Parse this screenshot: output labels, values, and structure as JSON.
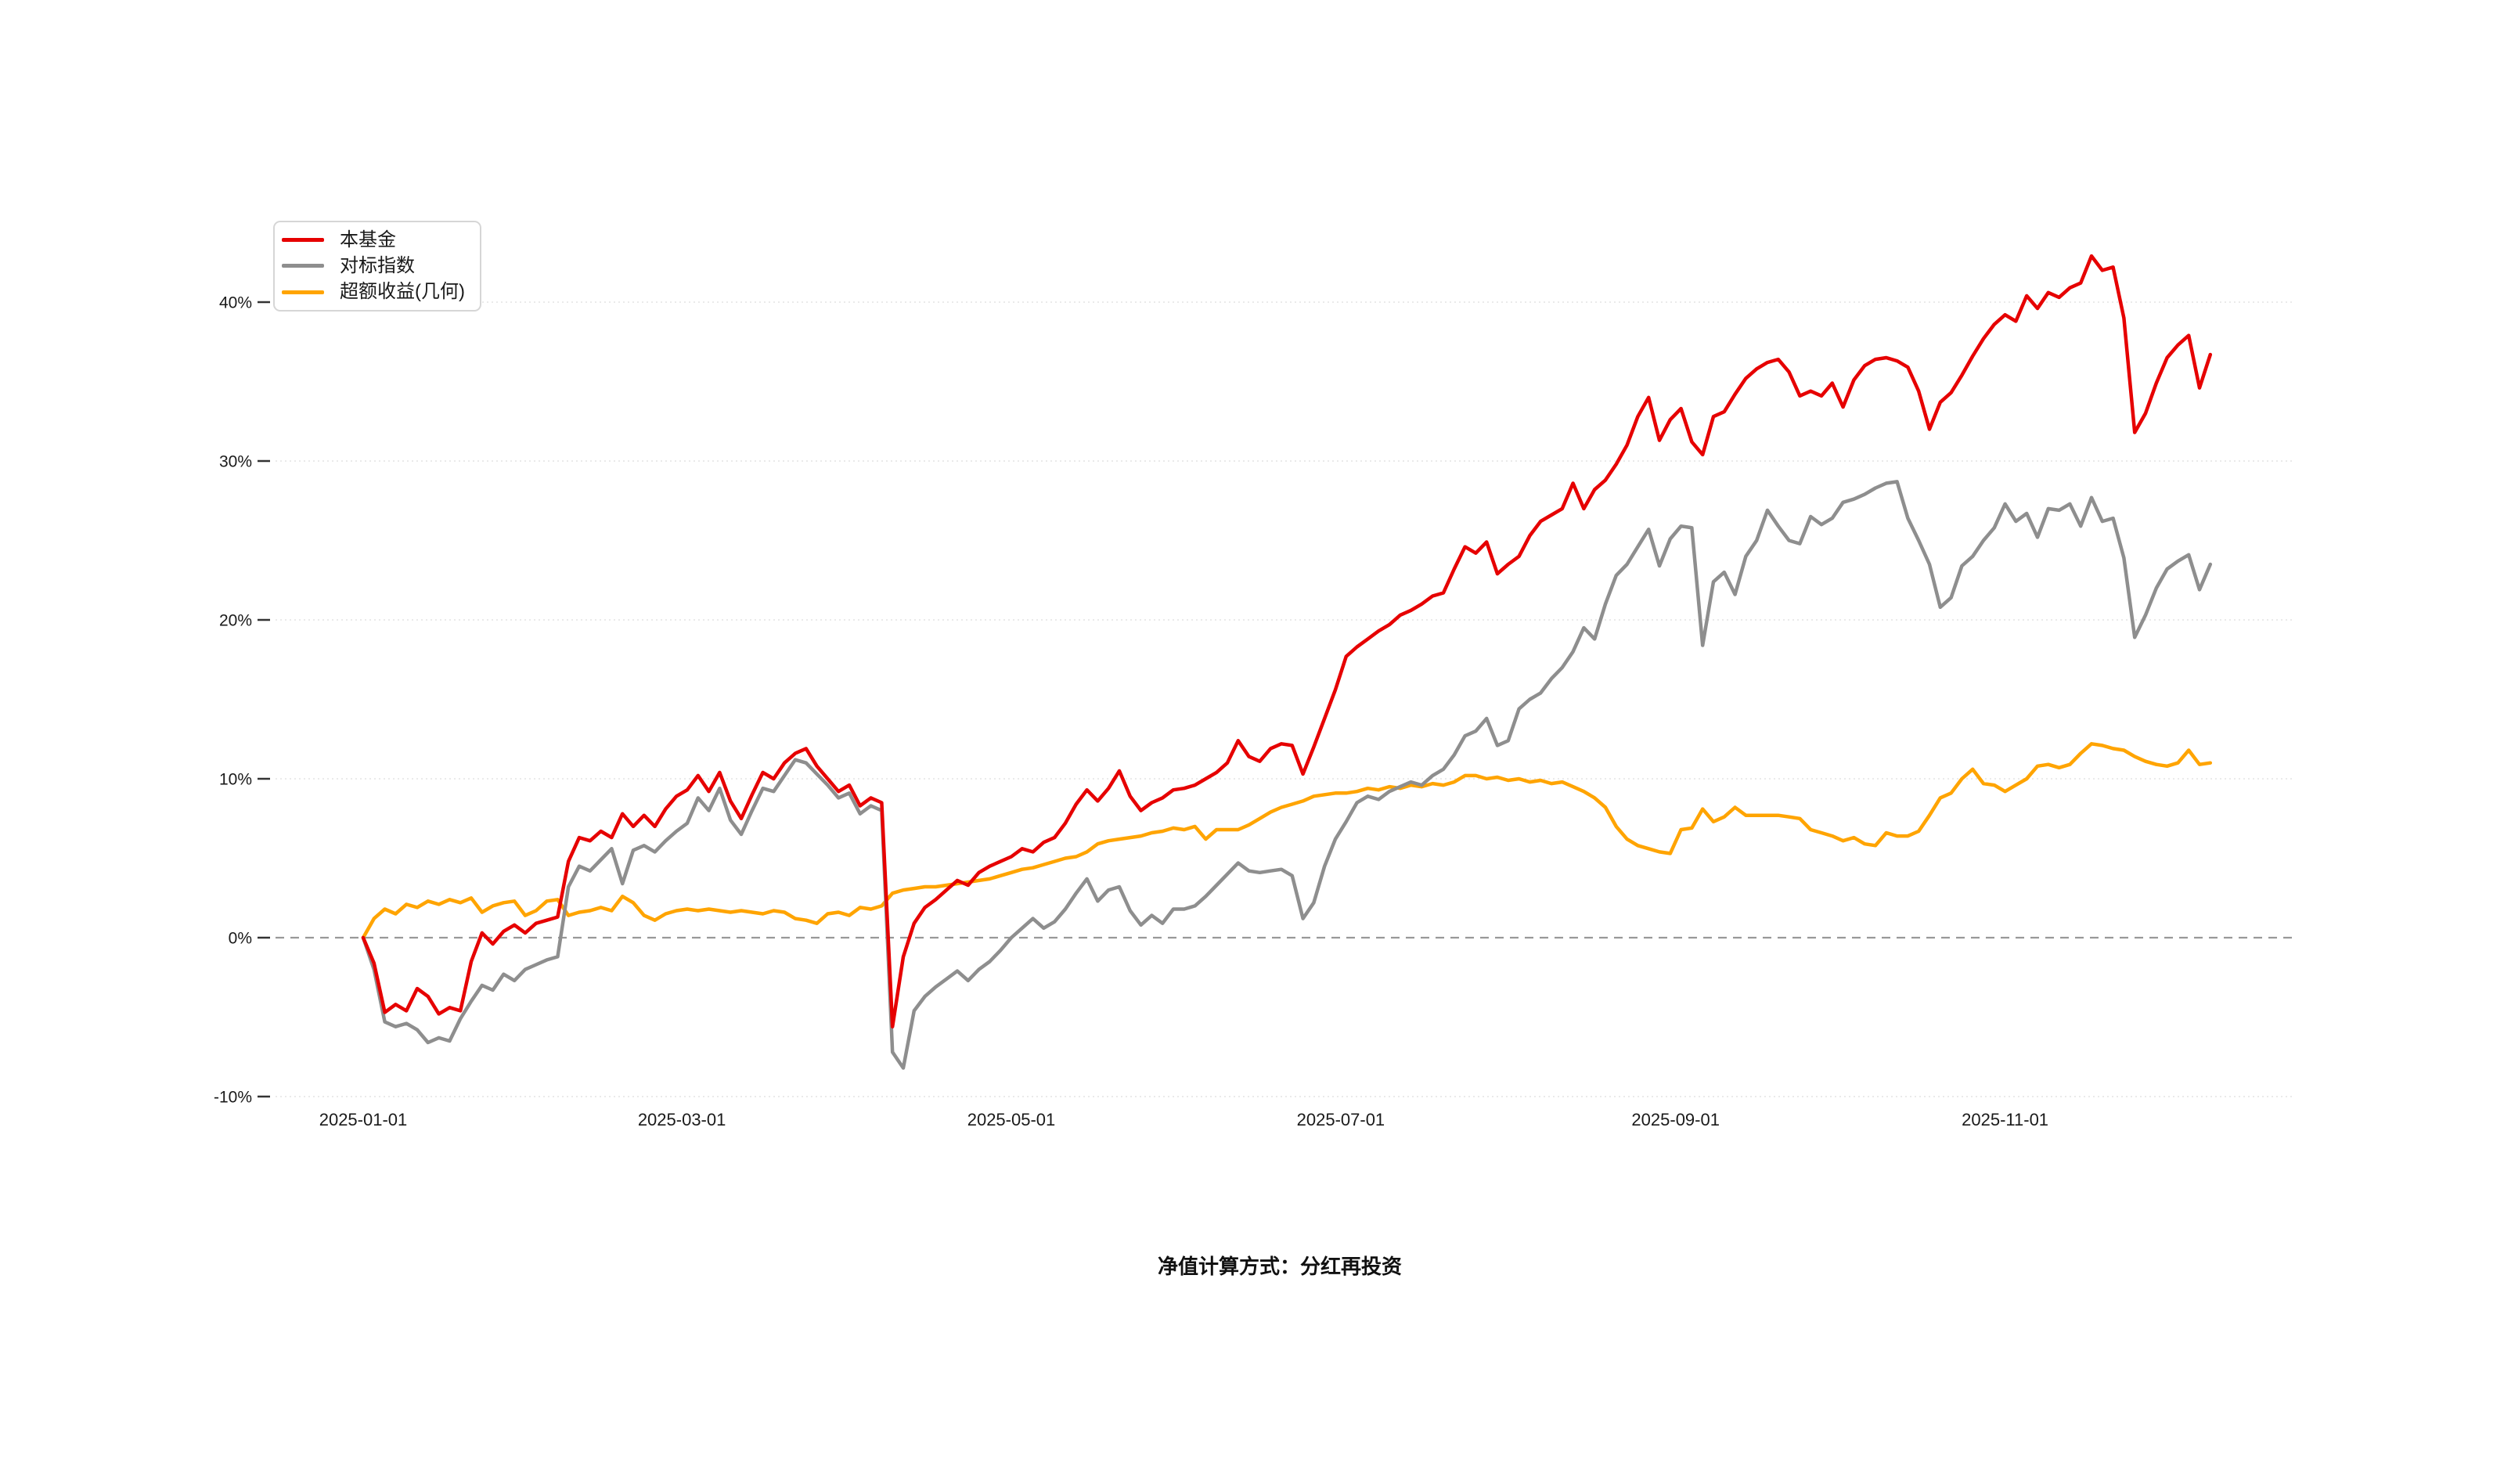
{
  "chart_data": {
    "type": "line",
    "title": "",
    "footnote": "净值计算方式：分红再投资",
    "start_date": "2025-01-01",
    "day_step": 2,
    "x_axis": {
      "ticks": [
        {
          "label": "2025-01-01",
          "day": 0
        },
        {
          "label": "2025-03-01",
          "day": 59
        },
        {
          "label": "2025-05-01",
          "day": 120
        },
        {
          "label": "2025-07-01",
          "day": 181
        },
        {
          "label": "2025-09-01",
          "day": 243
        },
        {
          "label": "2025-11-01",
          "day": 304
        }
      ]
    },
    "y_axis": {
      "unit": "%",
      "ticks": [
        {
          "label": "-10%",
          "value": -10
        },
        {
          "label": "0%",
          "value": 0
        },
        {
          "label": "10%",
          "value": 10
        },
        {
          "label": "20%",
          "value": 20
        },
        {
          "label": "30%",
          "value": 30
        },
        {
          "label": "40%",
          "value": 40
        }
      ],
      "range": [
        -13,
        45
      ],
      "zero_line_style": "dashed",
      "grid_style": "dotted"
    },
    "legend": {
      "position": "top-left"
    },
    "colors": {
      "grid": "#e3e3e3",
      "zero_line": "#999999",
      "text": "#1a1a1a"
    },
    "series": [
      {
        "key": "fund",
        "name": "本基金",
        "color": "#e60000",
        "values": [
          0,
          -1.6,
          -4.7,
          -4.2,
          -4.6,
          -3.2,
          -3.7,
          -4.8,
          -4.4,
          -4.6,
          -1.5,
          0.3,
          -0.4,
          0.4,
          0.8,
          0.3,
          0.9,
          1.1,
          1.3,
          4.8,
          6.3,
          6.1,
          6.7,
          6.3,
          7.8,
          7.0,
          7.7,
          7.0,
          8.1,
          8.9,
          9.3,
          10.2,
          9.2,
          10.4,
          8.6,
          7.5,
          9.0,
          10.4,
          10.0,
          11.0,
          11.6,
          11.9,
          10.8,
          10.0,
          9.2,
          9.6,
          8.3,
          8.8,
          8.5,
          -5.6,
          -1.2,
          0.9,
          1.9,
          2.4,
          3.0,
          3.6,
          3.3,
          4.1,
          4.5,
          4.8,
          5.1,
          5.6,
          5.4,
          6.0,
          6.3,
          7.2,
          8.4,
          9.3,
          8.6,
          9.4,
          10.5,
          8.9,
          8.0,
          8.5,
          8.8,
          9.3,
          9.4,
          9.6,
          10.0,
          10.4,
          11.0,
          12.4,
          11.4,
          11.1,
          11.9,
          12.2,
          12.1,
          10.3,
          12.0,
          13.8,
          15.6,
          17.7,
          18.3,
          18.8,
          19.3,
          19.7,
          20.3,
          20.6,
          21.0,
          21.5,
          21.7,
          23.2,
          24.6,
          24.2,
          24.9,
          22.9,
          23.5,
          24.0,
          25.3,
          26.2,
          26.6,
          27.0,
          28.6,
          27.0,
          28.2,
          28.8,
          29.8,
          31.0,
          32.8,
          34.0,
          31.3,
          32.6,
          33.3,
          31.2,
          30.4,
          32.8,
          33.1,
          34.2,
          35.2,
          35.8,
          36.2,
          36.4,
          35.6,
          34.1,
          34.4,
          34.1,
          34.9,
          33.4,
          35.1,
          36.0,
          36.4,
          36.5,
          36.3,
          35.9,
          34.4,
          32.0,
          33.7,
          34.3,
          35.4,
          36.6,
          37.7,
          38.6,
          39.2,
          38.8,
          40.4,
          39.6,
          40.6,
          40.3,
          40.9,
          41.2,
          42.9,
          42.0,
          42.2,
          39.0,
          31.8,
          33.0,
          34.9,
          36.5,
          37.3,
          37.9,
          34.6,
          36.7
        ]
      },
      {
        "key": "benchmark",
        "name": "对标指数",
        "color": "#8e8e8e",
        "values": [
          0,
          -2.0,
          -5.3,
          -5.6,
          -5.4,
          -5.8,
          -6.6,
          -6.3,
          -6.5,
          -5.1,
          -4.0,
          -3.0,
          -3.3,
          -2.3,
          -2.7,
          -2.0,
          -1.7,
          -1.4,
          -1.2,
          3.2,
          4.5,
          4.2,
          4.9,
          5.6,
          3.4,
          5.5,
          5.8,
          5.4,
          6.1,
          6.7,
          7.2,
          8.8,
          8.0,
          9.4,
          7.4,
          6.5,
          8.0,
          9.4,
          9.2,
          10.2,
          11.2,
          11.0,
          10.3,
          9.6,
          8.8,
          9.1,
          7.8,
          8.3,
          8.0,
          -7.2,
          -8.2,
          -4.6,
          -3.7,
          -3.1,
          -2.6,
          -2.1,
          -2.7,
          -2.0,
          -1.5,
          -0.8,
          0.0,
          0.6,
          1.2,
          0.6,
          1.0,
          1.8,
          2.8,
          3.7,
          2.3,
          3.0,
          3.2,
          1.7,
          0.8,
          1.4,
          0.9,
          1.8,
          1.8,
          2.0,
          2.6,
          3.3,
          4.0,
          4.7,
          4.2,
          4.1,
          4.2,
          4.3,
          3.9,
          1.2,
          2.2,
          4.5,
          6.2,
          7.3,
          8.5,
          8.9,
          8.7,
          9.2,
          9.5,
          9.8,
          9.6,
          10.2,
          10.6,
          11.5,
          12.7,
          13.0,
          13.8,
          12.1,
          12.4,
          14.4,
          15.0,
          15.4,
          16.3,
          17.0,
          18.0,
          19.5,
          18.8,
          21.0,
          22.8,
          23.5,
          24.6,
          25.7,
          23.4,
          25.1,
          25.9,
          25.8,
          18.4,
          22.4,
          23.0,
          21.6,
          24.0,
          25.0,
          26.9,
          25.9,
          25.0,
          24.8,
          26.5,
          26.0,
          26.4,
          27.4,
          27.6,
          27.9,
          28.3,
          28.6,
          28.7,
          26.4,
          25.0,
          23.5,
          20.8,
          21.4,
          23.4,
          24.0,
          25.0,
          25.8,
          27.3,
          26.2,
          26.7,
          25.2,
          27.0,
          26.9,
          27.3,
          25.9,
          27.7,
          26.2,
          26.4,
          23.9,
          18.9,
          20.3,
          22.0,
          23.2,
          23.7,
          24.1,
          21.9,
          23.5
        ]
      },
      {
        "key": "excess-return-geometric",
        "name": "超额收益(几何)",
        "color": "#ffa400",
        "values": [
          0,
          1.2,
          1.8,
          1.5,
          2.1,
          1.9,
          2.3,
          2.1,
          2.4,
          2.2,
          2.5,
          1.6,
          2.0,
          2.2,
          2.3,
          1.4,
          1.7,
          2.3,
          2.4,
          1.4,
          1.6,
          1.7,
          1.9,
          1.7,
          2.6,
          2.2,
          1.4,
          1.1,
          1.5,
          1.7,
          1.8,
          1.7,
          1.8,
          1.7,
          1.6,
          1.7,
          1.6,
          1.5,
          1.7,
          1.6,
          1.2,
          1.1,
          0.9,
          1.5,
          1.6,
          1.4,
          1.9,
          1.8,
          2.0,
          2.8,
          3.0,
          3.1,
          3.2,
          3.2,
          3.3,
          3.4,
          3.5,
          3.6,
          3.7,
          3.9,
          4.1,
          4.3,
          4.4,
          4.6,
          4.8,
          5.0,
          5.1,
          5.4,
          5.9,
          6.1,
          6.2,
          6.3,
          6.4,
          6.6,
          6.7,
          6.9,
          6.8,
          7.0,
          6.2,
          6.8,
          6.8,
          6.8,
          7.1,
          7.5,
          7.9,
          8.2,
          8.4,
          8.6,
          8.9,
          9.0,
          9.1,
          9.1,
          9.2,
          9.4,
          9.3,
          9.5,
          9.4,
          9.6,
          9.5,
          9.7,
          9.6,
          9.8,
          10.2,
          10.2,
          10.0,
          10.1,
          9.9,
          10.0,
          9.8,
          9.9,
          9.7,
          9.8,
          9.5,
          9.2,
          8.8,
          8.2,
          7.0,
          6.2,
          5.8,
          5.6,
          5.4,
          5.3,
          6.8,
          6.9,
          8.1,
          7.3,
          7.6,
          8.2,
          7.7,
          7.7,
          7.7,
          7.7,
          7.6,
          7.5,
          6.8,
          6.6,
          6.4,
          6.1,
          6.3,
          5.9,
          5.8,
          6.6,
          6.4,
          6.4,
          6.7,
          7.7,
          8.8,
          9.1,
          10.0,
          10.6,
          9.7,
          9.6,
          9.2,
          9.6,
          10.0,
          10.8,
          10.9,
          10.7,
          10.9,
          11.6,
          12.2,
          12.1,
          11.9,
          11.8,
          11.4,
          11.1,
          10.9,
          10.8,
          11.0,
          11.8,
          10.9,
          11.0
        ]
      }
    ]
  }
}
